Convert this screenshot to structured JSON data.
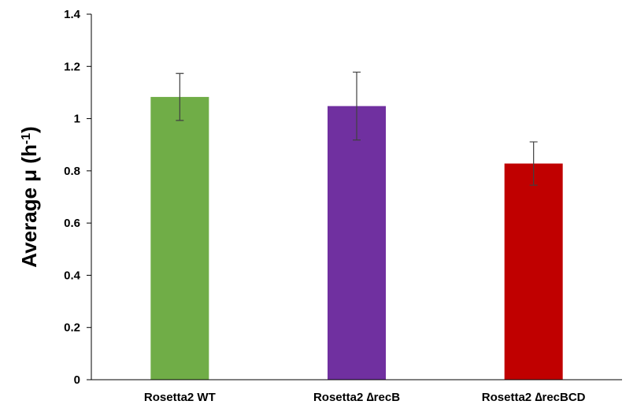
{
  "chart_data": {
    "type": "bar",
    "categories": [
      "Rosetta2 WT",
      "Rosetta2 ∆recB",
      "Rosetta2 ∆recBCD"
    ],
    "values": [
      1.083,
      1.048,
      0.828
    ],
    "error": [
      0.09,
      0.13,
      0.083
    ],
    "colors": [
      "#70AD47",
      "#7030A0",
      "#C00000"
    ],
    "ylabel": "Average μ (h-1)",
    "ylabel_main": "Average μ (h",
    "ylabel_sup": "-1",
    "ylabel_tail": ")",
    "ylim": [
      0,
      1.4
    ],
    "yticks": [
      0,
      0.2,
      0.4,
      0.6,
      0.8,
      1,
      1.2,
      1.4
    ],
    "ytick_labels": [
      "0",
      "0.2",
      "0.4",
      "0.6",
      "0.8",
      "1",
      "1.2",
      "1.4"
    ],
    "grid": false,
    "legend": "none"
  }
}
